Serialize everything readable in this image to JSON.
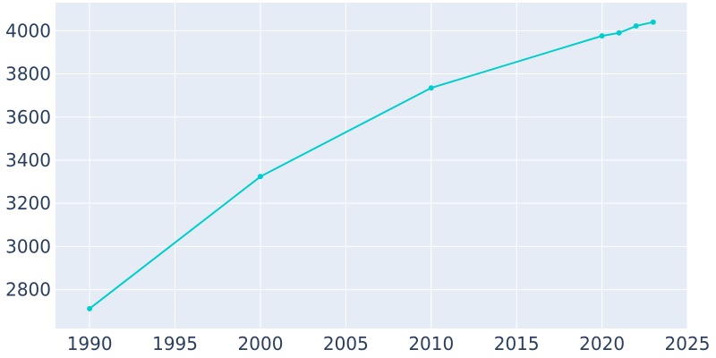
{
  "chart_data": {
    "type": "line",
    "title": "",
    "xlabel": "",
    "ylabel": "",
    "xlim": [
      1988,
      2025
    ],
    "ylim": [
      2620,
      4130
    ],
    "x_ticks": [
      1990,
      1995,
      2000,
      2005,
      2010,
      2015,
      2020,
      2025
    ],
    "y_ticks": [
      2800,
      3000,
      3200,
      3400,
      3600,
      3800,
      4000
    ],
    "grid": true,
    "legend": "none",
    "colors": {
      "line": "#00cdcd",
      "plot_bg": "#e5ecf6",
      "grid": "#ffffff",
      "text": "#2a3f5f"
    },
    "series": [
      {
        "x": [
          1990,
          2000,
          2010,
          2020,
          2021,
          2022,
          2023
        ],
        "y": [
          2712,
          3324,
          3735,
          3976,
          3990,
          4022,
          4040
        ]
      }
    ]
  }
}
